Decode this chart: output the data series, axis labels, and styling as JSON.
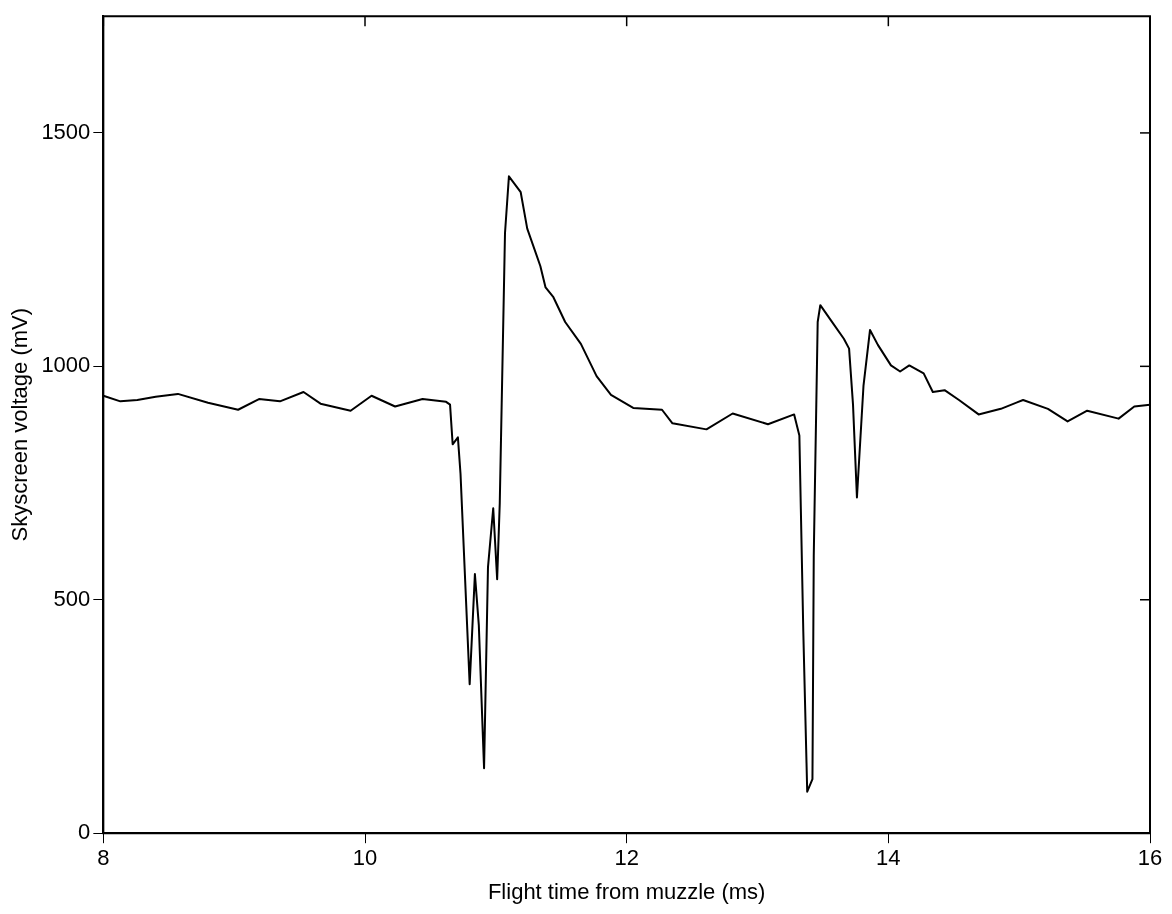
{
  "chart_data": {
    "type": "line",
    "xlabel": "Flight time from muzzle (ms)",
    "ylabel": "Skyscreen voltage (mV)",
    "xlim": [
      8,
      16
    ],
    "ylim": [
      0,
      1750
    ],
    "xticks": [
      8,
      10,
      12,
      14,
      16
    ],
    "yticks": [
      0,
      500,
      1000,
      1500
    ],
    "grid": false,
    "legend": false,
    "marker": "none",
    "line_style": "solid",
    "series": [
      {
        "color": "#000000",
        "x": [
          8.0,
          8.13,
          8.26,
          8.4,
          8.57,
          8.8,
          9.03,
          9.19,
          9.35,
          9.53,
          9.66,
          9.89,
          10.05,
          10.23,
          10.44,
          10.62,
          10.65,
          10.67,
          10.71,
          10.73,
          10.8,
          10.84,
          10.87,
          10.91,
          10.94,
          10.98,
          11.01,
          11.03,
          11.07,
          11.1,
          11.14,
          11.19,
          11.24,
          11.34,
          11.38,
          11.44,
          11.53,
          11.65,
          11.77,
          11.88,
          12.05,
          12.27,
          12.35,
          12.61,
          12.81,
          13.08,
          13.28,
          13.32,
          13.35,
          13.38,
          13.42,
          13.43,
          13.46,
          13.48,
          13.56,
          13.66,
          13.7,
          13.73,
          13.76,
          13.81,
          13.86,
          13.92,
          14.02,
          14.09,
          14.16,
          14.27,
          14.34,
          14.43,
          14.54,
          14.69,
          14.86,
          15.03,
          15.22,
          15.37,
          15.52,
          15.76,
          15.88,
          16.0
        ],
        "values": [
          937,
          925,
          928,
          935,
          941,
          922,
          907,
          930,
          925,
          945,
          920,
          905,
          937,
          914,
          930,
          924,
          918,
          833,
          848,
          770,
          319,
          555,
          445,
          139,
          570,
          696,
          544,
          707,
          1285,
          1407,
          1392,
          1373,
          1295,
          1215,
          1169,
          1148,
          1095,
          1048,
          979,
          939,
          911,
          907,
          878,
          865,
          899,
          876,
          897,
          852,
          432,
          89,
          116,
          595,
          1095,
          1131,
          1099,
          1059,
          1038,
          918,
          719,
          958,
          1078,
          1046,
          1002,
          989,
          1002,
          985,
          945,
          949,
          928,
          897,
          909,
          928,
          909,
          882,
          905,
          888,
          914,
          918
        ]
      }
    ]
  }
}
